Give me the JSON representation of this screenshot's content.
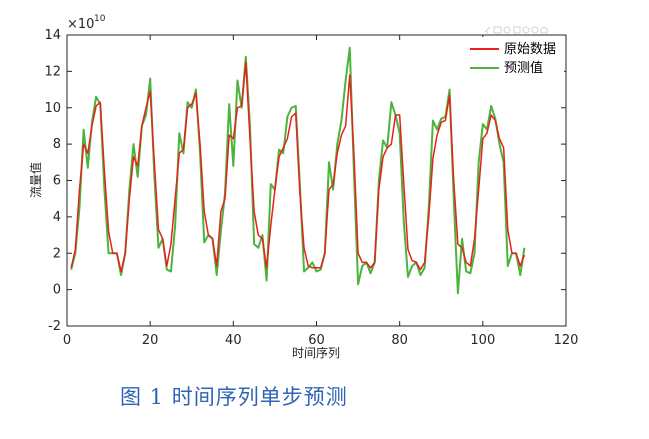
{
  "chart_data": {
    "type": "line",
    "title": "",
    "xlabel": "时间序列",
    "ylabel": "流量值",
    "y_exponent": "×10",
    "y_exponent_power": "10",
    "xlim": [
      0,
      120
    ],
    "ylim": [
      -2,
      14
    ],
    "x_ticks": [
      0,
      20,
      40,
      60,
      80,
      100,
      120
    ],
    "y_ticks": [
      -2,
      0,
      2,
      4,
      6,
      8,
      10,
      12,
      14
    ],
    "grid": false,
    "legend_position": "top-right",
    "x": [
      1,
      2,
      3,
      4,
      5,
      6,
      7,
      8,
      9,
      10,
      11,
      12,
      13,
      14,
      15,
      16,
      17,
      18,
      19,
      20,
      21,
      22,
      23,
      24,
      25,
      26,
      27,
      28,
      29,
      30,
      31,
      32,
      33,
      34,
      35,
      36,
      37,
      38,
      39,
      40,
      41,
      42,
      43,
      44,
      45,
      46,
      47,
      48,
      49,
      50,
      51,
      52,
      53,
      54,
      55,
      56,
      57,
      58,
      59,
      60,
      61,
      62,
      63,
      64,
      65,
      66,
      67,
      68,
      69,
      70,
      71,
      72,
      73,
      74,
      75,
      76,
      77,
      78,
      79,
      80,
      81,
      82,
      83,
      84,
      85,
      86,
      87,
      88,
      89,
      90,
      91,
      92,
      93,
      94,
      95,
      96,
      97,
      98,
      99,
      100,
      101,
      102,
      103,
      104,
      105,
      106,
      107,
      108,
      109,
      110
    ],
    "series": [
      {
        "name": "原始数据",
        "color": "#e8211d",
        "values": [
          1.2,
          2.2,
          5.5,
          8.0,
          7.5,
          9.0,
          10.1,
          10.3,
          6.5,
          3.2,
          2.0,
          2.0,
          1.0,
          2.0,
          5.0,
          7.3,
          6.8,
          9.0,
          10.0,
          10.9,
          7.0,
          3.3,
          2.8,
          1.3,
          2.5,
          5.0,
          7.5,
          7.7,
          10.0,
          10.2,
          10.8,
          8.0,
          4.3,
          3.0,
          2.8,
          1.3,
          4.3,
          5.0,
          8.5,
          8.3,
          10.0,
          10.1,
          12.5,
          8.3,
          4.3,
          3.0,
          2.8,
          1.2,
          3.5,
          5.5,
          7.3,
          7.8,
          8.3,
          9.5,
          9.7,
          5.3,
          2.3,
          1.3,
          1.2,
          1.2,
          1.2,
          2.0,
          5.5,
          5.8,
          7.5,
          8.5,
          9.0,
          11.8,
          7.5,
          2.0,
          1.5,
          1.5,
          1.2,
          1.5,
          5.5,
          7.3,
          7.8,
          8.0,
          9.6,
          9.6,
          5.8,
          2.2,
          1.6,
          1.5,
          1.1,
          1.5,
          4.0,
          7.2,
          8.5,
          9.2,
          9.3,
          10.7,
          6.0,
          2.5,
          2.3,
          1.5,
          1.3,
          2.8,
          5.5,
          8.3,
          8.6,
          9.6,
          9.3,
          8.3,
          7.8,
          3.3,
          2.0,
          2.0,
          1.3,
          1.9
        ]
      },
      {
        "name": "预测值",
        "color": "#4db33d",
        "values": [
          1.1,
          2.0,
          4.5,
          8.8,
          6.7,
          9.2,
          10.6,
          10.2,
          5.5,
          2.0,
          2.0,
          2.0,
          0.8,
          2.0,
          5.5,
          8.0,
          6.2,
          9.0,
          9.6,
          11.6,
          6.3,
          2.3,
          2.8,
          1.1,
          1.0,
          3.5,
          8.6,
          7.5,
          10.3,
          10.0,
          11.0,
          7.5,
          2.6,
          3.0,
          2.8,
          0.8,
          3.2,
          5.3,
          10.2,
          6.8,
          11.5,
          10.0,
          12.8,
          9.0,
          2.5,
          2.3,
          3.0,
          0.5,
          5.8,
          5.5,
          7.7,
          7.5,
          9.5,
          10.0,
          10.1,
          5.8,
          1.0,
          1.2,
          1.5,
          1.0,
          1.1,
          2.0,
          7.0,
          5.5,
          8.0,
          9.3,
          11.5,
          13.3,
          6.5,
          0.3,
          1.3,
          1.5,
          0.9,
          1.5,
          6.0,
          8.2,
          7.8,
          10.3,
          9.6,
          8.6,
          3.7,
          0.7,
          1.3,
          1.5,
          0.8,
          1.2,
          4.5,
          9.3,
          8.8,
          9.4,
          9.5,
          11.0,
          5.0,
          -0.2,
          2.8,
          1.0,
          0.9,
          2.0,
          7.0,
          9.1,
          8.8,
          10.1,
          9.4,
          8.0,
          7.0,
          1.3,
          2.0,
          2.0,
          0.8,
          2.3
        ]
      }
    ]
  },
  "caption": "图 1 时间序列单步预测",
  "toolbar_icons": [
    "brush-icon",
    "export-icon",
    "pan-icon",
    "datatip-icon",
    "zoom-in-icon",
    "zoom-out-icon",
    "home-icon"
  ]
}
